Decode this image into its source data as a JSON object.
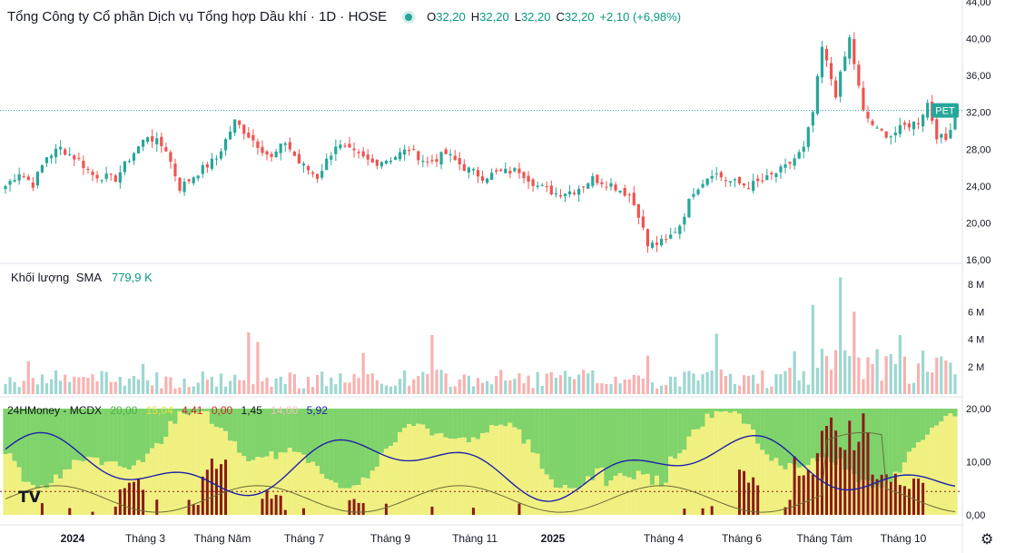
{
  "header": {
    "title": "Tổng Công ty Cổ phần Dịch vụ Tổng hợp Dầu khí · 1D · HOSE",
    "o_label": "O",
    "o_value": "32,20",
    "h_label": "H",
    "h_value": "32,20",
    "l_label": "L",
    "l_value": "32,20",
    "c_label": "C",
    "c_value": "32,20",
    "change": "+2,10 (+6,98%)"
  },
  "colors": {
    "up": "#26a69a",
    "down": "#ef5350",
    "blue": "#1e22aa",
    "green_zone": "#7fd36a",
    "yellow_zone": "#f0f080",
    "red_zone": "#8b1a1a"
  },
  "price_axis": {
    "labels": [
      "44,00",
      "40,00",
      "36,00",
      "32,00",
      "28,00",
      "24,00",
      "20,00",
      "16,00"
    ],
    "min": 16,
    "max": 44
  },
  "current_price": {
    "symbol": "PET",
    "value": 32.2
  },
  "volume": {
    "name": "Khối lượng",
    "sma_label": "SMA",
    "sma_value": "779,9 K",
    "axis_labels": [
      "8 M",
      "6 M",
      "4 M",
      "2 M"
    ]
  },
  "indicator": {
    "name": "24HMoney - MCDX",
    "values": [
      "20,00",
      "15,04",
      "4,41",
      "0,00",
      "1,45",
      "14,00",
      "5,92"
    ],
    "value_colors": [
      "#4caf50",
      "#e0e040",
      "#c62828",
      "#c62828",
      "#131722",
      "#f0c0c0",
      "#1e22aa"
    ],
    "axis_labels": [
      "20,00",
      "10,00",
      "0,00"
    ]
  },
  "time_axis": {
    "labels": [
      "2024",
      "Tháng 3",
      "Tháng Năm",
      "Tháng 7",
      "Tháng 9",
      "Tháng 11",
      "2025",
      "Tháng 4",
      "Tháng 6",
      "Tháng Tám",
      "Tháng 10"
    ],
    "bold": [
      true,
      false,
      false,
      false,
      false,
      false,
      true,
      false,
      false,
      false,
      false
    ]
  },
  "chart_data": {
    "type": "candlestick",
    "title": "Tổng Công ty Cổ phần Dịch vụ Tổng hợp Dầu khí · 1D · HOSE",
    "price_anchors": [
      [
        0,
        24.0
      ],
      [
        3,
        25.5
      ],
      [
        6,
        24.2
      ],
      [
        9,
        27.2
      ],
      [
        12,
        28.1
      ],
      [
        16,
        26.8
      ],
      [
        19,
        25.2
      ],
      [
        24,
        24.8
      ],
      [
        27,
        27.0
      ],
      [
        31,
        29.5
      ],
      [
        35,
        28.0
      ],
      [
        38,
        23.8
      ],
      [
        42,
        25.5
      ],
      [
        46,
        27.0
      ],
      [
        50,
        31.0
      ],
      [
        54,
        29.0
      ],
      [
        58,
        27.0
      ],
      [
        61,
        28.8
      ],
      [
        64,
        26.5
      ],
      [
        68,
        25.0
      ],
      [
        72,
        28.5
      ],
      [
        76,
        27.5
      ],
      [
        80,
        26.5
      ],
      [
        84,
        27.0
      ],
      [
        88,
        28.0
      ],
      [
        92,
        26.5
      ],
      [
        96,
        27.5
      ],
      [
        100,
        26.0
      ],
      [
        104,
        25.0
      ],
      [
        108,
        25.5
      ],
      [
        112,
        25.7
      ],
      [
        116,
        24.0
      ],
      [
        120,
        23.2
      ],
      [
        124,
        23.5
      ],
      [
        128,
        24.8
      ],
      [
        132,
        24.2
      ],
      [
        136,
        23.0
      ],
      [
        138,
        21.0
      ],
      [
        140,
        17.5
      ],
      [
        144,
        18.0
      ],
      [
        147,
        19.8
      ],
      [
        150,
        23.5
      ],
      [
        154,
        25.5
      ],
      [
        158,
        24.5
      ],
      [
        162,
        24.0
      ],
      [
        166,
        24.8
      ],
      [
        170,
        26.0
      ],
      [
        174,
        28.0
      ],
      [
        176,
        32.0
      ],
      [
        178,
        39.0
      ],
      [
        181,
        34.0
      ],
      [
        184,
        40.0
      ],
      [
        187,
        32.0
      ],
      [
        190,
        30.0
      ],
      [
        193,
        29.5
      ],
      [
        196,
        30.5
      ],
      [
        199,
        31.0
      ],
      [
        201,
        33.0
      ],
      [
        203,
        29.5
      ],
      [
        205,
        29.0
      ],
      [
        206,
        30.5
      ],
      [
        207,
        32.2
      ]
    ],
    "volume_spikes_millions": [
      [
        5,
        2.4
      ],
      [
        30,
        2.2
      ],
      [
        53,
        4.5
      ],
      [
        55,
        3.8
      ],
      [
        78,
        3.0
      ],
      [
        93,
        4.3
      ],
      [
        140,
        2.8
      ],
      [
        155,
        4.4
      ],
      [
        176,
        6.5
      ],
      [
        182,
        8.5
      ],
      [
        185,
        6.0
      ],
      [
        195,
        4.3
      ]
    ],
    "indicator_ylim": [
      0,
      20
    ]
  }
}
